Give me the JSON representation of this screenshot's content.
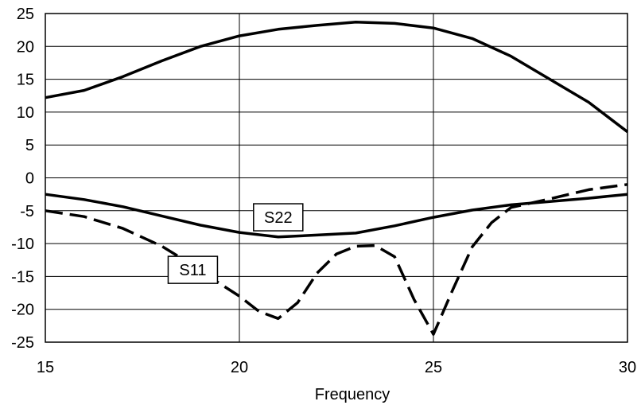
{
  "chart_data": {
    "type": "line",
    "title": "",
    "xlabel": "Frequency",
    "ylabel": "",
    "xlim": [
      15,
      30
    ],
    "ylim": [
      -25,
      25
    ],
    "x_ticks": [
      15,
      20,
      25,
      30
    ],
    "y_ticks": [
      25,
      20,
      15,
      10,
      5,
      0,
      -5,
      -10,
      -15,
      -20,
      -25
    ],
    "x_tick_labels": [
      "15",
      "20",
      "25",
      "30"
    ],
    "y_tick_labels": [
      "25",
      "20",
      "15",
      "10",
      "5",
      "0",
      "-5",
      "-10",
      "-15",
      "-20",
      "-25"
    ],
    "grid": true,
    "series": [
      {
        "style": "solid",
        "color": "#000000",
        "x": [
          15,
          16,
          17,
          18,
          19,
          20,
          21,
          22,
          23,
          24,
          25,
          26,
          27,
          28,
          29,
          30
        ],
        "y": [
          12.2,
          13.3,
          15.4,
          17.8,
          20.0,
          21.6,
          22.6,
          23.2,
          23.7,
          23.5,
          22.8,
          21.2,
          18.5,
          15.0,
          11.5,
          7.0
        ]
      },
      {
        "name": "S22",
        "style": "solid",
        "color": "#000000",
        "x": [
          15,
          16,
          17,
          18,
          19,
          20,
          21,
          22,
          23,
          24,
          25,
          26,
          27,
          28,
          29,
          30
        ],
        "y": [
          -2.5,
          -3.3,
          -4.4,
          -5.8,
          -7.2,
          -8.3,
          -9.0,
          -8.7,
          -8.4,
          -7.3,
          -6.0,
          -4.9,
          -4.1,
          -3.6,
          -3.1,
          -2.5
        ]
      },
      {
        "name": "S11",
        "style": "dashed",
        "color": "#000000",
        "x": [
          15,
          16,
          17,
          18,
          18.5,
          19,
          20,
          20.5,
          21,
          21.5,
          22,
          22.5,
          23,
          23.5,
          24,
          24.5,
          25,
          25.5,
          26,
          26.5,
          27,
          28,
          29,
          30
        ],
        "y": [
          -5.0,
          -5.9,
          -7.7,
          -10.4,
          -12.2,
          -14.2,
          -18.0,
          -20.3,
          -21.4,
          -19.0,
          -14.5,
          -11.6,
          -10.4,
          -10.3,
          -12.0,
          -18.5,
          -23.8,
          -17.0,
          -10.5,
          -6.8,
          -4.5,
          -3.2,
          -1.8,
          -1.0
        ]
      }
    ],
    "annotations": [
      {
        "text": "S22",
        "x": 21.0,
        "y": -6.0,
        "target_series": 1
      },
      {
        "text": "S11",
        "x": 18.8,
        "y": -14.0,
        "target_series": 2
      }
    ]
  }
}
